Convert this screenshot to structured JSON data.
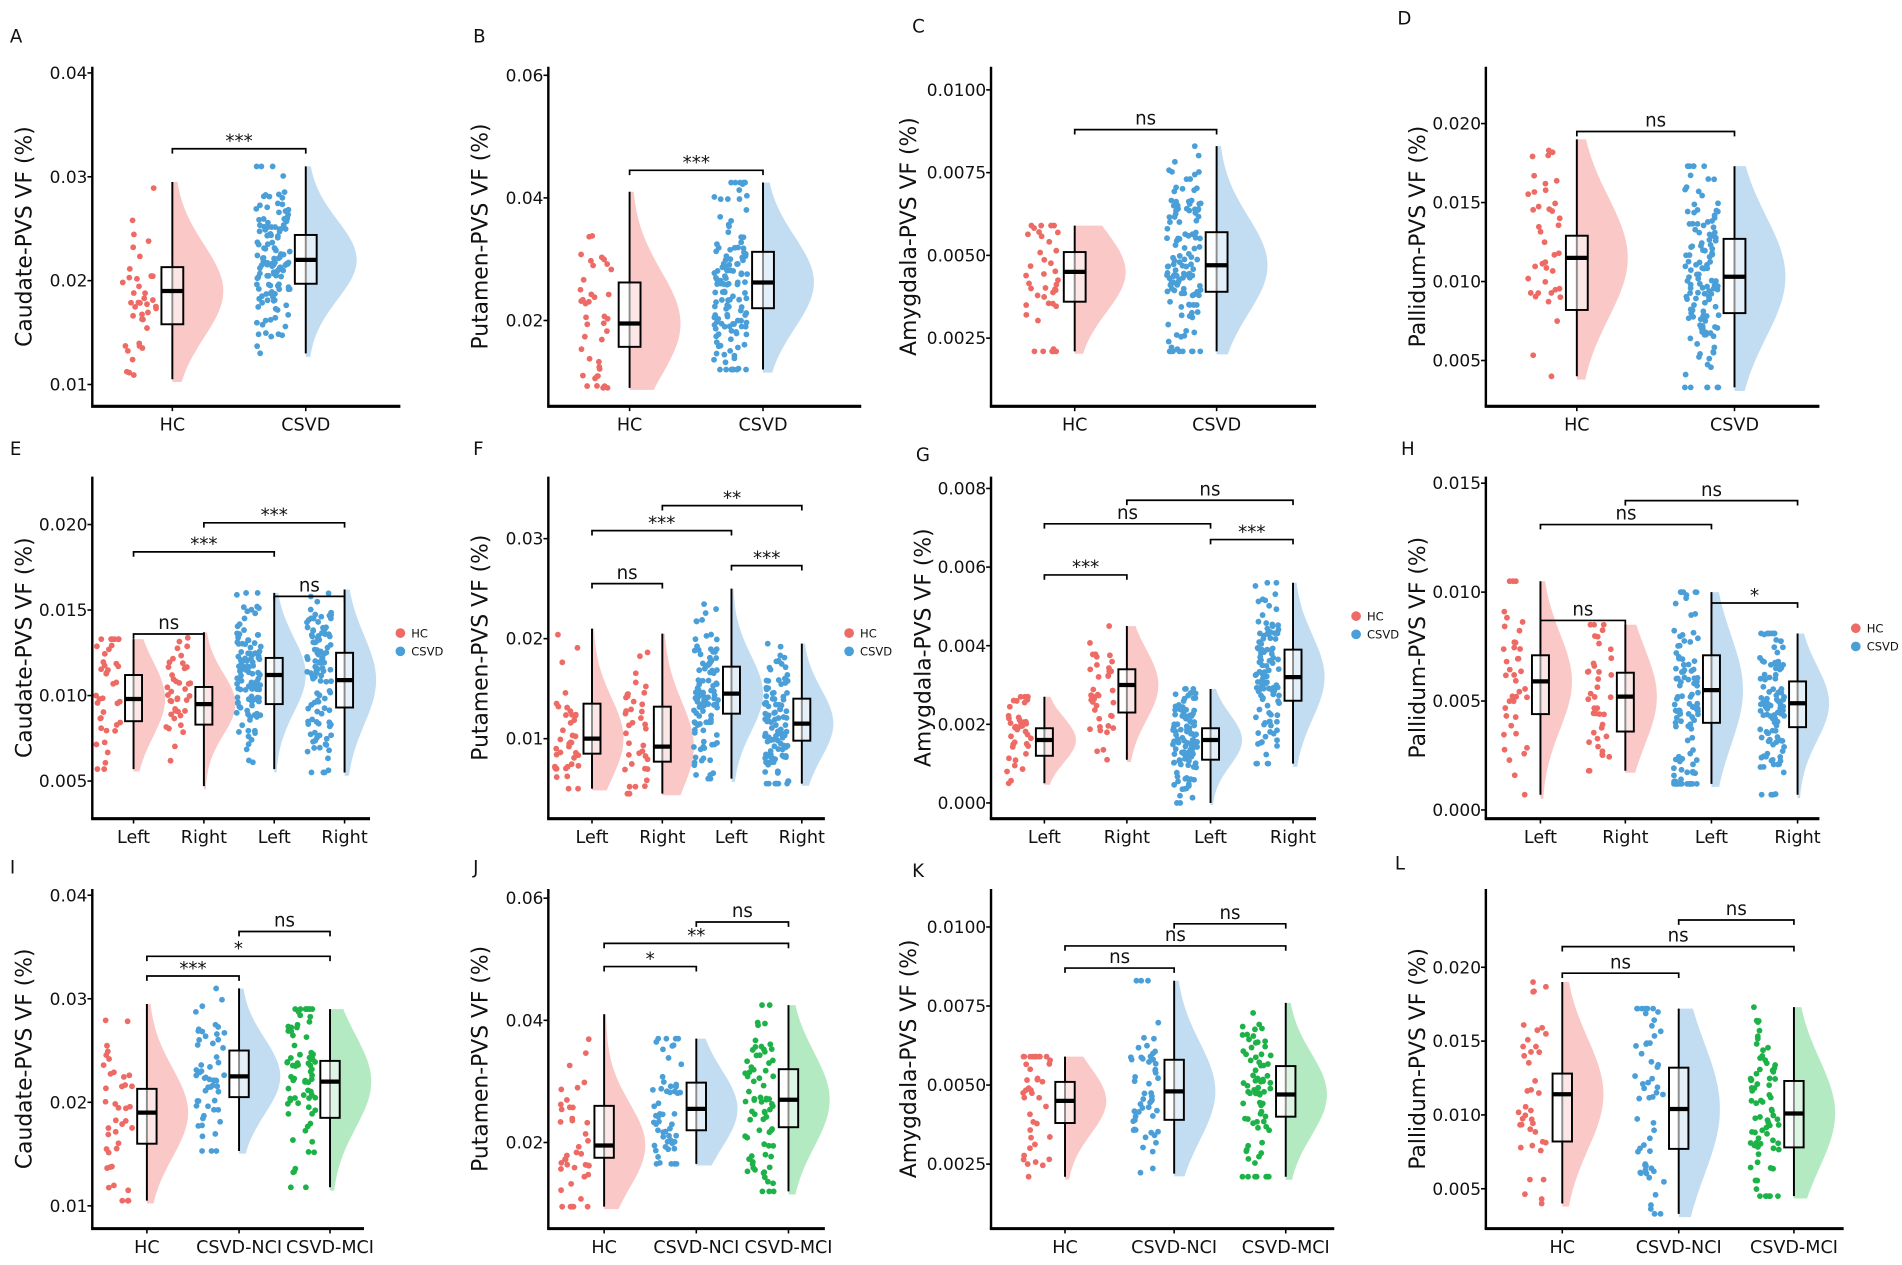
{
  "colors": {
    "HC": "#EE6A64",
    "CSVD": "#4A9FD8",
    "CSVD-NCI": "#4A9FD8",
    "CSVD-MCI": "#1DB247",
    "HC_fill": "#FAC9C7",
    "CSVD_fill": "#C2DDF2",
    "MCI_fill": "#B4EAC2"
  },
  "legend": {
    "items": [
      {
        "label": "HC",
        "color": "#EE6A64"
      },
      {
        "label": "CSVD",
        "color": "#4A9FD8"
      }
    ]
  },
  "chart_data": [
    {
      "type": "box",
      "letter": "A",
      "ylabel": "Caudate-PVS VF (%)",
      "ylim": [
        0.0079,
        0.0406
      ],
      "ticks": [
        {
          "v": 0.01,
          "label": "0.01"
        },
        {
          "v": 0.02,
          "label": "0.02"
        },
        {
          "v": 0.03,
          "label": "0.03"
        },
        {
          "v": 0.04,
          "label": "0.04"
        }
      ],
      "groups": [
        {
          "name": "HC",
          "series": "HC",
          "n": 40,
          "min": 0.0105,
          "q1": 0.0158,
          "median": 0.019,
          "q3": 0.0213,
          "max": 0.0295
        },
        {
          "name": "CSVD",
          "series": "CSVD",
          "n": 130,
          "min": 0.013,
          "q1": 0.0197,
          "median": 0.022,
          "q3": 0.0244,
          "max": 0.031
        }
      ],
      "brackets": [
        {
          "from": 0,
          "to": 1,
          "y": 0.0327,
          "label": "***"
        }
      ]
    },
    {
      "type": "box",
      "letter": "B",
      "ylabel": "Putamen-PVS VF (%)",
      "ylim": [
        0.006,
        0.0614
      ],
      "ticks": [
        {
          "v": 0.02,
          "label": "0.02"
        },
        {
          "v": 0.04,
          "label": "0.04"
        },
        {
          "v": 0.06,
          "label": "0.06"
        }
      ],
      "groups": [
        {
          "name": "HC",
          "series": "HC",
          "n": 40,
          "min": 0.009,
          "q1": 0.0157,
          "median": 0.0195,
          "q3": 0.0262,
          "max": 0.041
        },
        {
          "name": "CSVD",
          "series": "CSVD",
          "n": 130,
          "min": 0.012,
          "q1": 0.022,
          "median": 0.0262,
          "q3": 0.0312,
          "max": 0.0425
        }
      ],
      "brackets": [
        {
          "from": 0,
          "to": 1,
          "y": 0.0445,
          "label": "***"
        }
      ]
    },
    {
      "type": "box",
      "letter": "C",
      "ylabel": "Amygdala-PVS VF (%)",
      "ylim": [
        0.00044,
        0.0107
      ],
      "ticks": [
        {
          "v": 0.0025,
          "label": "0.0025"
        },
        {
          "v": 0.005,
          "label": "0.0050"
        },
        {
          "v": 0.0075,
          "label": "0.0075"
        },
        {
          "v": 0.01,
          "label": "0.0100"
        }
      ],
      "groups": [
        {
          "name": "HC",
          "series": "HC",
          "n": 40,
          "min": 0.0021,
          "q1": 0.0036,
          "median": 0.0045,
          "q3": 0.0051,
          "max": 0.0059
        },
        {
          "name": "CSVD",
          "series": "CSVD",
          "n": 130,
          "min": 0.0021,
          "q1": 0.0039,
          "median": 0.0047,
          "q3": 0.0057,
          "max": 0.0083
        }
      ],
      "brackets": [
        {
          "from": 0,
          "to": 1,
          "y": 0.0088,
          "label": "ns"
        }
      ]
    },
    {
      "type": "box",
      "letter": "D",
      "ylabel": "Pallidum-PVS VF (%)",
      "ylim": [
        0.0021,
        0.0236
      ],
      "ticks": [
        {
          "v": 0.005,
          "label": "0.005"
        },
        {
          "v": 0.01,
          "label": "0.010"
        },
        {
          "v": 0.015,
          "label": "0.015"
        },
        {
          "v": 0.02,
          "label": "0.020"
        }
      ],
      "groups": [
        {
          "name": "HC",
          "series": "HC",
          "n": 40,
          "min": 0.004,
          "q1": 0.0082,
          "median": 0.0115,
          "q3": 0.0129,
          "max": 0.019
        },
        {
          "name": "CSVD",
          "series": "CSVD",
          "n": 130,
          "min": 0.0033,
          "q1": 0.008,
          "median": 0.0103,
          "q3": 0.0127,
          "max": 0.0173
        }
      ],
      "brackets": [
        {
          "from": 0,
          "to": 1,
          "y": 0.0195,
          "label": "ns"
        }
      ]
    },
    {
      "type": "box",
      "letter": "E",
      "ylabel": "Caudate-PVS VF (%)",
      "ylim": [
        0.0028,
        0.0228
      ],
      "legend": true,
      "ticks": [
        {
          "v": 0.005,
          "label": "0.005"
        },
        {
          "v": 0.01,
          "label": "0.010"
        },
        {
          "v": 0.015,
          "label": "0.015"
        },
        {
          "v": 0.02,
          "label": "0.020"
        }
      ],
      "groups": [
        {
          "name": "Left",
          "series": "HC",
          "n": 40,
          "min": 0.0057,
          "q1": 0.0085,
          "median": 0.0098,
          "q3": 0.0112,
          "max": 0.0133
        },
        {
          "name": "Right",
          "series": "HC",
          "n": 40,
          "min": 0.0047,
          "q1": 0.0083,
          "median": 0.0095,
          "q3": 0.0105,
          "max": 0.0137
        },
        {
          "name": "Left",
          "series": "CSVD",
          "n": 110,
          "min": 0.0057,
          "q1": 0.0095,
          "median": 0.0112,
          "q3": 0.0122,
          "max": 0.016
        },
        {
          "name": "Right",
          "series": "CSVD",
          "n": 110,
          "min": 0.0055,
          "q1": 0.0093,
          "median": 0.0109,
          "q3": 0.0125,
          "max": 0.0162
        }
      ],
      "brackets": [
        {
          "from": 0,
          "to": 1,
          "y": 0.0136,
          "label": "ns"
        },
        {
          "from": 2,
          "to": 3,
          "y": 0.0158,
          "label": "ns"
        },
        {
          "from": 0,
          "to": 2,
          "y": 0.0184,
          "label": "***"
        },
        {
          "from": 1,
          "to": 3,
          "y": 0.0201,
          "label": "***"
        }
      ]
    },
    {
      "type": "box",
      "letter": "F",
      "ylabel": "Putamen-PVS VF (%)",
      "ylim": [
        0.002,
        0.0362
      ],
      "legend": true,
      "ticks": [
        {
          "v": 0.01,
          "label": "0.01"
        },
        {
          "v": 0.02,
          "label": "0.02"
        },
        {
          "v": 0.03,
          "label": "0.03"
        }
      ],
      "groups": [
        {
          "name": "Left",
          "series": "HC",
          "n": 40,
          "min": 0.005,
          "q1": 0.0085,
          "median": 0.01,
          "q3": 0.0135,
          "max": 0.021
        },
        {
          "name": "Right",
          "series": "HC",
          "n": 40,
          "min": 0.0045,
          "q1": 0.0077,
          "median": 0.0092,
          "q3": 0.0132,
          "max": 0.0205
        },
        {
          "name": "Left",
          "series": "CSVD",
          "n": 110,
          "min": 0.006,
          "q1": 0.0125,
          "median": 0.0145,
          "q3": 0.0172,
          "max": 0.025
        },
        {
          "name": "Right",
          "series": "CSVD",
          "n": 110,
          "min": 0.0055,
          "q1": 0.0098,
          "median": 0.0115,
          "q3": 0.014,
          "max": 0.0195
        }
      ],
      "brackets": [
        {
          "from": 0,
          "to": 1,
          "y": 0.0255,
          "label": "ns"
        },
        {
          "from": 2,
          "to": 3,
          "y": 0.0273,
          "label": "***"
        },
        {
          "from": 0,
          "to": 2,
          "y": 0.0308,
          "label": "***"
        },
        {
          "from": 1,
          "to": 3,
          "y": 0.0333,
          "label": "**"
        }
      ]
    },
    {
      "type": "box",
      "letter": "G",
      "ylabel": "Amygdala-PVS VF (%)",
      "ylim": [
        -0.0004,
        0.0083
      ],
      "legend": true,
      "ticks": [
        {
          "v": 0,
          "label": "0.000"
        },
        {
          "v": 0.002,
          "label": "0.002"
        },
        {
          "v": 0.004,
          "label": "0.004"
        },
        {
          "v": 0.006,
          "label": "0.006"
        },
        {
          "v": 0.008,
          "label": "0.008"
        }
      ],
      "groups": [
        {
          "name": "Left",
          "series": "HC",
          "n": 40,
          "min": 0.0005,
          "q1": 0.0012,
          "median": 0.0016,
          "q3": 0.0019,
          "max": 0.0027
        },
        {
          "name": "Right",
          "series": "HC",
          "n": 40,
          "min": 0.0011,
          "q1": 0.0023,
          "median": 0.003,
          "q3": 0.0034,
          "max": 0.0045
        },
        {
          "name": "Left",
          "series": "CSVD",
          "n": 110,
          "min": 0.0,
          "q1": 0.0011,
          "median": 0.0016,
          "q3": 0.0019,
          "max": 0.0029
        },
        {
          "name": "Right",
          "series": "CSVD",
          "n": 110,
          "min": 0.001,
          "q1": 0.0026,
          "median": 0.0032,
          "q3": 0.0039,
          "max": 0.0056
        }
      ],
      "brackets": [
        {
          "from": 0,
          "to": 1,
          "y": 0.0058,
          "label": "***"
        },
        {
          "from": 2,
          "to": 3,
          "y": 0.0067,
          "label": "***"
        },
        {
          "from": 0,
          "to": 2,
          "y": 0.0071,
          "label": "ns"
        },
        {
          "from": 1,
          "to": 3,
          "y": 0.0077,
          "label": "ns"
        }
      ]
    },
    {
      "type": "box",
      "letter": "H",
      "ylabel": "Pallidum-PVS VF (%)",
      "ylim": [
        -0.0004,
        0.0153
      ],
      "legend": true,
      "ticks": [
        {
          "v": 0,
          "label": "0.000"
        },
        {
          "v": 0.005,
          "label": "0.005"
        },
        {
          "v": 0.01,
          "label": "0.010"
        },
        {
          "v": 0.015,
          "label": "0.015"
        }
      ],
      "groups": [
        {
          "name": "Left",
          "series": "HC",
          "n": 40,
          "min": 0.0007,
          "q1": 0.0044,
          "median": 0.0059,
          "q3": 0.0071,
          "max": 0.0105
        },
        {
          "name": "Right",
          "series": "HC",
          "n": 40,
          "min": 0.0018,
          "q1": 0.0036,
          "median": 0.0052,
          "q3": 0.0063,
          "max": 0.0085
        },
        {
          "name": "Left",
          "series": "CSVD",
          "n": 110,
          "min": 0.0012,
          "q1": 0.004,
          "median": 0.0055,
          "q3": 0.0071,
          "max": 0.01
        },
        {
          "name": "Right",
          "series": "CSVD",
          "n": 110,
          "min": 0.0007,
          "q1": 0.0038,
          "median": 0.0049,
          "q3": 0.0059,
          "max": 0.0081
        }
      ],
      "brackets": [
        {
          "from": 0,
          "to": 1,
          "y": 0.0087,
          "label": "ns"
        },
        {
          "from": 2,
          "to": 3,
          "y": 0.0095,
          "label": "*"
        },
        {
          "from": 0,
          "to": 2,
          "y": 0.0131,
          "label": "ns"
        },
        {
          "from": 1,
          "to": 3,
          "y": 0.0142,
          "label": "ns"
        }
      ]
    },
    {
      "type": "box",
      "letter": "I",
      "ylabel": "Caudate-PVS VF (%)",
      "ylim": [
        0.0078,
        0.0406
      ],
      "ticks": [
        {
          "v": 0.01,
          "label": "0.01"
        },
        {
          "v": 0.02,
          "label": "0.02"
        },
        {
          "v": 0.03,
          "label": "0.03"
        },
        {
          "v": 0.04,
          "label": "0.04"
        }
      ],
      "groups": [
        {
          "name": "HC",
          "series": "HC",
          "n": 40,
          "min": 0.0105,
          "q1": 0.016,
          "median": 0.019,
          "q3": 0.0213,
          "max": 0.0295
        },
        {
          "name": "CSVD-NCI",
          "series": "CSVD-NCI",
          "n": 55,
          "min": 0.0153,
          "q1": 0.0205,
          "median": 0.0225,
          "q3": 0.025,
          "max": 0.031
        },
        {
          "name": "CSVD-MCI",
          "series": "CSVD-MCI",
          "n": 75,
          "min": 0.0118,
          "q1": 0.0185,
          "median": 0.022,
          "q3": 0.024,
          "max": 0.029
        }
      ],
      "brackets": [
        {
          "from": 0,
          "to": 1,
          "y": 0.0322,
          "label": "***"
        },
        {
          "from": 0,
          "to": 2,
          "y": 0.0341,
          "label": "*"
        },
        {
          "from": 1,
          "to": 2,
          "y": 0.0365,
          "label": "ns"
        }
      ]
    },
    {
      "type": "box",
      "letter": "J",
      "ylabel": "Putamen-PVS VF (%)",
      "ylim": [
        0.0059,
        0.0615
      ],
      "ticks": [
        {
          "v": 0.02,
          "label": "0.02"
        },
        {
          "v": 0.04,
          "label": "0.04"
        },
        {
          "v": 0.06,
          "label": "0.06"
        }
      ],
      "groups": [
        {
          "name": "HC",
          "series": "HC",
          "n": 40,
          "min": 0.0095,
          "q1": 0.0175,
          "median": 0.0195,
          "q3": 0.026,
          "max": 0.041
        },
        {
          "name": "CSVD-NCI",
          "series": "CSVD-NCI",
          "n": 55,
          "min": 0.0165,
          "q1": 0.022,
          "median": 0.0255,
          "q3": 0.0298,
          "max": 0.037
        },
        {
          "name": "CSVD-MCI",
          "series": "CSVD-MCI",
          "n": 75,
          "min": 0.012,
          "q1": 0.0225,
          "median": 0.027,
          "q3": 0.032,
          "max": 0.0425
        }
      ],
      "brackets": [
        {
          "from": 0,
          "to": 1,
          "y": 0.0488,
          "label": "*"
        },
        {
          "from": 0,
          "to": 2,
          "y": 0.0526,
          "label": "**"
        },
        {
          "from": 1,
          "to": 2,
          "y": 0.0561,
          "label": "ns"
        }
      ]
    },
    {
      "type": "box",
      "letter": "K",
      "ylabel": "Amygdala-PVS VF (%)",
      "ylim": [
        0.00046,
        0.0112
      ],
      "ticks": [
        {
          "v": 0.0025,
          "label": "0.0025"
        },
        {
          "v": 0.005,
          "label": "0.0050"
        },
        {
          "v": 0.0075,
          "label": "0.0075"
        },
        {
          "v": 0.01,
          "label": "0.0100"
        }
      ],
      "groups": [
        {
          "name": "HC",
          "series": "HC",
          "n": 40,
          "min": 0.0021,
          "q1": 0.0038,
          "median": 0.0045,
          "q3": 0.0051,
          "max": 0.0059
        },
        {
          "name": "CSVD-NCI",
          "series": "CSVD-NCI",
          "n": 55,
          "min": 0.0022,
          "q1": 0.0039,
          "median": 0.0048,
          "q3": 0.0058,
          "max": 0.0083
        },
        {
          "name": "CSVD-MCI",
          "series": "CSVD-MCI",
          "n": 75,
          "min": 0.0021,
          "q1": 0.004,
          "median": 0.0047,
          "q3": 0.0056,
          "max": 0.0076
        }
      ],
      "brackets": [
        {
          "from": 0,
          "to": 1,
          "y": 0.0087,
          "label": "ns"
        },
        {
          "from": 0,
          "to": 2,
          "y": 0.0094,
          "label": "ns"
        },
        {
          "from": 1,
          "to": 2,
          "y": 0.0101,
          "label": "ns"
        }
      ]
    },
    {
      "type": "box",
      "letter": "L",
      "ylabel": "Pallidum-PVS VF (%)",
      "ylim": [
        0.0023,
        0.0253
      ],
      "ticks": [
        {
          "v": 0.005,
          "label": "0.005"
        },
        {
          "v": 0.01,
          "label": "0.010"
        },
        {
          "v": 0.015,
          "label": "0.015"
        },
        {
          "v": 0.02,
          "label": "0.020"
        }
      ],
      "groups": [
        {
          "name": "HC",
          "series": "HC",
          "n": 40,
          "min": 0.004,
          "q1": 0.0082,
          "median": 0.0114,
          "q3": 0.0128,
          "max": 0.019
        },
        {
          "name": "CSVD-NCI",
          "series": "CSVD-NCI",
          "n": 55,
          "min": 0.0033,
          "q1": 0.0077,
          "median": 0.0104,
          "q3": 0.0132,
          "max": 0.0172
        },
        {
          "name": "CSVD-MCI",
          "series": "CSVD-MCI",
          "n": 75,
          "min": 0.0045,
          "q1": 0.0078,
          "median": 0.0101,
          "q3": 0.0123,
          "max": 0.0173
        }
      ],
      "brackets": [
        {
          "from": 0,
          "to": 1,
          "y": 0.0196,
          "label": "ns"
        },
        {
          "from": 0,
          "to": 2,
          "y": 0.0214,
          "label": "ns"
        },
        {
          "from": 1,
          "to": 2,
          "y": 0.0232,
          "label": "ns"
        }
      ]
    }
  ]
}
